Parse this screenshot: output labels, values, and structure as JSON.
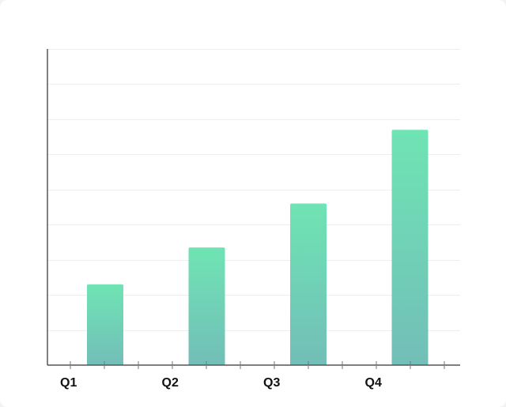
{
  "chart_data": {
    "type": "bar",
    "title": "",
    "xlabel": "",
    "ylabel": "",
    "categories": [
      "Q1",
      "Q2",
      "Q3",
      "Q4"
    ],
    "values": [
      23,
      33.5,
      46,
      67
    ],
    "ylim": [
      0,
      90
    ],
    "y_grid_step": 10,
    "grid": true,
    "show_y_tick_labels": false,
    "legend": "none",
    "colors": {
      "bar_top": "#6fe4b4",
      "bar_bottom": "#72beb8",
      "gridline": "#eeeeee",
      "axis": "#555555",
      "label": "#111111"
    }
  }
}
